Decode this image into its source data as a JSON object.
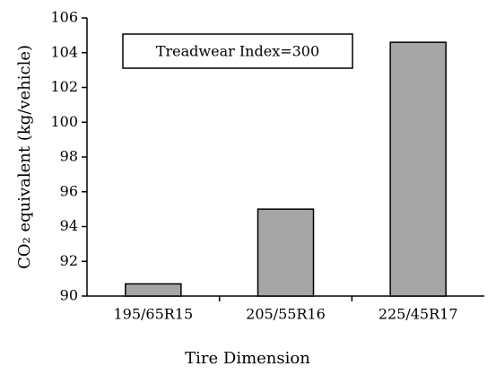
{
  "chart_data": {
    "type": "bar",
    "annotation": "Treadwear Index=300",
    "x_label": "Tire Dimension",
    "y_label": "CO₂ equivalent (kg/vehicle)",
    "categories": [
      "195/65R15",
      "205/55R16",
      "225/45R17"
    ],
    "values": [
      90.7,
      95.0,
      104.6
    ],
    "color": "#a6a6a6",
    "ylim": [
      90,
      106
    ],
    "yticks": [
      90,
      92,
      94,
      96,
      98,
      100,
      102,
      104,
      106
    ],
    "grid": false
  }
}
